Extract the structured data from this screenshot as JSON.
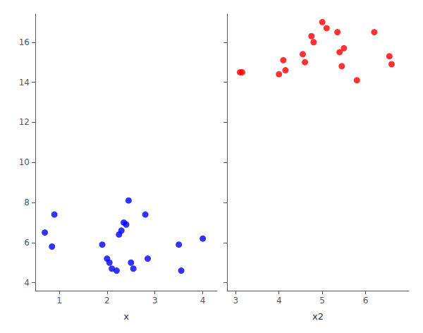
{
  "chart_data": [
    {
      "type": "scatter",
      "xlabel": "x",
      "x": [
        0.7,
        0.9,
        0.85,
        1.9,
        2.0,
        2.05,
        2.1,
        2.2,
        2.25,
        2.3,
        2.35,
        2.4,
        2.45,
        2.5,
        2.55,
        2.8,
        2.85,
        3.5,
        3.55,
        4.0
      ],
      "values": [
        6.5,
        7.4,
        5.8,
        5.9,
        5.2,
        5.0,
        4.7,
        4.6,
        6.4,
        6.6,
        7.0,
        6.9,
        8.1,
        5.0,
        4.7,
        7.4,
        5.2,
        5.9,
        4.6,
        6.2
      ],
      "color": "#0000ff",
      "xlim": [
        0.5,
        4.3
      ],
      "xticks": [
        1,
        2,
        3,
        4
      ],
      "ylim": [
        3.6,
        17.4
      ],
      "yticks": [
        4,
        6,
        8,
        10,
        12,
        14,
        16
      ],
      "grid": false
    },
    {
      "type": "scatter",
      "xlabel": "x2",
      "x": [
        3.1,
        3.15,
        4.0,
        4.1,
        4.15,
        4.55,
        4.6,
        4.75,
        4.8,
        5.0,
        5.1,
        5.35,
        5.4,
        5.45,
        5.5,
        5.8,
        6.2,
        6.55,
        6.6
      ],
      "values": [
        14.5,
        14.5,
        14.4,
        15.1,
        14.6,
        15.4,
        15.0,
        16.3,
        16.0,
        17.0,
        16.7,
        16.5,
        15.5,
        14.8,
        15.7,
        14.1,
        16.5,
        15.3,
        14.9
      ],
      "color": "#ff0000",
      "xlim": [
        2.8,
        7.0
      ],
      "xticks": [
        3,
        4,
        5,
        6
      ],
      "ylim": [
        3.6,
        17.4
      ],
      "yticks": [
        4,
        6,
        8,
        10,
        12,
        14,
        16
      ],
      "grid": false,
      "tick_labels": "x"
    }
  ]
}
